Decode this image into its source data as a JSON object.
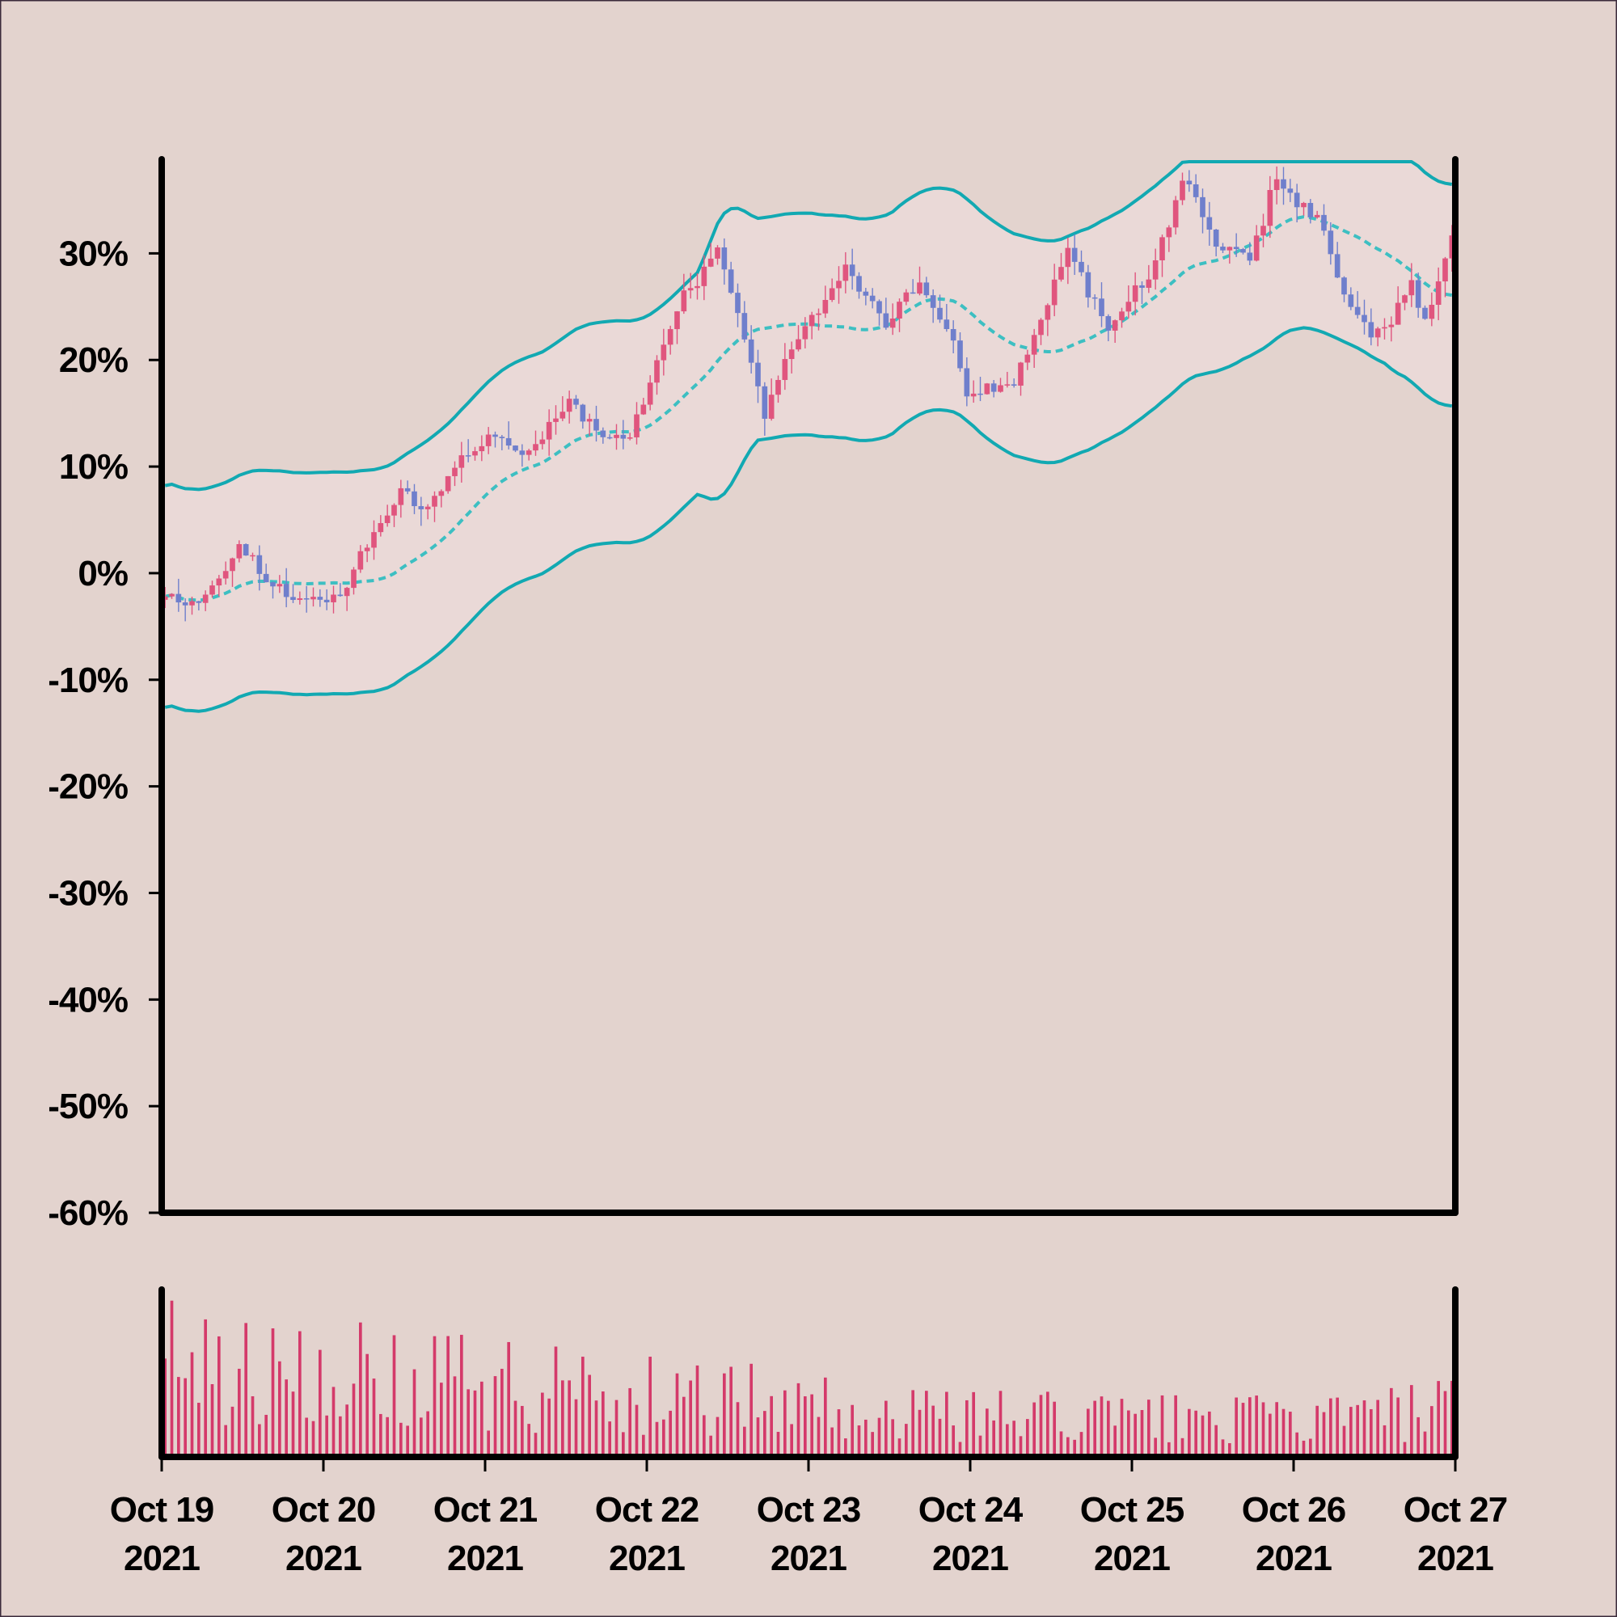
{
  "chart_data": {
    "type": "candlestick",
    "colors": {
      "background": "#e3d3ce",
      "band_fill": "#ead9d7",
      "band_line": "#12a9b2",
      "middle_line": "#3dbfc2",
      "up": "#e0557e",
      "down": "#6f7fcc",
      "volume": "#d43a6a",
      "axes": "#000000"
    },
    "price_axis": {
      "ylim": [
        -60,
        38.6
      ],
      "tick_values": [
        30,
        20,
        10,
        0,
        -10,
        -20,
        -30,
        -40,
        -50,
        -60
      ],
      "tick_labels": [
        "30%",
        "20%",
        "10%",
        "0%",
        "-10%",
        "-20%",
        "-30%",
        "-40%",
        "-50%",
        "-60%"
      ]
    },
    "x_axis": {
      "start": "Oct 19 2021",
      "end": "Oct 27 2021",
      "ticks": [
        {
          "line1": "Oct 19",
          "line2": "2021"
        },
        {
          "line1": "Oct 20",
          "line2": "2021"
        },
        {
          "line1": "Oct 21",
          "line2": "2021"
        },
        {
          "line1": "Oct 22",
          "line2": "2021"
        },
        {
          "line1": "Oct 23",
          "line2": "2021"
        },
        {
          "line1": "Oct 24",
          "line2": "2021"
        },
        {
          "line1": "Oct 25",
          "line2": "2021"
        },
        {
          "line1": "Oct 26",
          "line2": "2021"
        },
        {
          "line1": "Oct 27",
          "line2": "2021"
        }
      ]
    },
    "price_path": [
      {
        "date": "Oct 19 2021 00:00",
        "value": -2.5
      },
      {
        "date": "Oct 19 2021 07:00",
        "value": -2.5
      },
      {
        "date": "Oct 19 2021 12:00",
        "value": 3.0
      },
      {
        "date": "Oct 19 2021 17:00",
        "value": -1.0
      },
      {
        "date": "Oct 19 2021 21:00",
        "value": -3.0
      },
      {
        "date": "Oct 20 2021 03:00",
        "value": -2.0
      },
      {
        "date": "Oct 20 2021 07:00",
        "value": 3.0
      },
      {
        "date": "Oct 20 2021 12:00",
        "value": 7.5
      },
      {
        "date": "Oct 20 2021 16:00",
        "value": 6.0
      },
      {
        "date": "Oct 20 2021 20:00",
        "value": 10.0
      },
      {
        "date": "Oct 21 2021 02:00",
        "value": 13.0
      },
      {
        "date": "Oct 21 2021 05:00",
        "value": 11.0
      },
      {
        "date": "Oct 21 2021 09:00",
        "value": 13.0
      },
      {
        "date": "Oct 21 2021 13:00",
        "value": 16.5
      },
      {
        "date": "Oct 21 2021 18:00",
        "value": 12.5
      },
      {
        "date": "Oct 21 2021 22:00",
        "value": 13.0
      },
      {
        "date": "Oct 22 2021 02:00",
        "value": 20.0
      },
      {
        "date": "Oct 22 2021 06:00",
        "value": 26.0
      },
      {
        "date": "Oct 22 2021 11:00",
        "value": 30.0
      },
      {
        "date": "Oct 22 2021 15:00",
        "value": 22.5
      },
      {
        "date": "Oct 22 2021 18:00",
        "value": 15.0
      },
      {
        "date": "Oct 22 2021 21:00",
        "value": 20.0
      },
      {
        "date": "Oct 23 2021 02:00",
        "value": 25.0
      },
      {
        "date": "Oct 23 2021 06:00",
        "value": 29.0
      },
      {
        "date": "Oct 23 2021 12:00",
        "value": 23.0
      },
      {
        "date": "Oct 23 2021 17:00",
        "value": 27.5
      },
      {
        "date": "Oct 23 2021 22:00",
        "value": 22.0
      },
      {
        "date": "Oct 24 2021 00:00",
        "value": 17.0
      },
      {
        "date": "Oct 24 2021 07:00",
        "value": 18.0
      },
      {
        "date": "Oct 24 2021 11:00",
        "value": 24.0
      },
      {
        "date": "Oct 24 2021 15:00",
        "value": 30.0
      },
      {
        "date": "Oct 24 2021 21:00",
        "value": 23.0
      },
      {
        "date": "Oct 25 2021 04:00",
        "value": 29.0
      },
      {
        "date": "Oct 25 2021 08:00",
        "value": 37.0
      },
      {
        "date": "Oct 25 2021 13:00",
        "value": 31.0
      },
      {
        "date": "Oct 25 2021 18:00",
        "value": 29.0
      },
      {
        "date": "Oct 25 2021 22:00",
        "value": 37.5
      },
      {
        "date": "Oct 26 2021 01:00",
        "value": 35.0
      },
      {
        "date": "Oct 26 2021 05:00",
        "value": 32.5
      },
      {
        "date": "Oct 26 2021 08:00",
        "value": 26.0
      },
      {
        "date": "Oct 26 2021 12:00",
        "value": 22.5
      },
      {
        "date": "Oct 26 2021 15:00",
        "value": 24.0
      },
      {
        "date": "Oct 26 2021 18:00",
        "value": 27.0
      },
      {
        "date": "Oct 26 2021 20:00",
        "value": 24.0
      },
      {
        "date": "Oct 27 2021 00:00",
        "value": 31.0
      }
    ],
    "bollinger": {
      "period_candles": 20,
      "k": 2,
      "upper_cap": 38.6
    },
    "volume_axis": {
      "ylim": [
        0,
        100
      ]
    },
    "legend": "none",
    "grid": false
  }
}
